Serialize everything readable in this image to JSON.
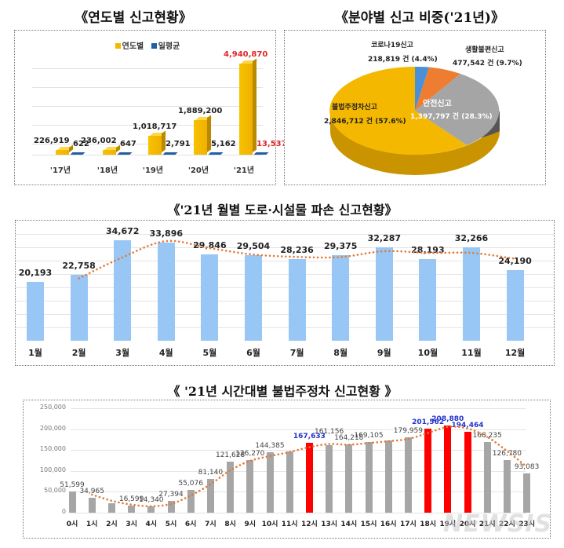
{
  "chart_data": [
    {
      "type": "bar",
      "title": "《연도별 신고현황》",
      "legend": [
        "연도별",
        "일평균"
      ],
      "legend_colors": [
        "#f5b800",
        "#1f5fa8"
      ],
      "categories": [
        "'17년",
        "'18년",
        "'19년",
        "'20년",
        "'21년"
      ],
      "series": [
        {
          "name": "연도별",
          "values": [
            226919,
            236002,
            1018717,
            1889200,
            4940870
          ],
          "labels": [
            "226,919",
            "236,002",
            "1,018,717",
            "1,889,200",
            "4,940,870"
          ]
        },
        {
          "name": "일평균",
          "values": [
            622,
            647,
            2791,
            5162,
            13537
          ],
          "labels": [
            "622",
            "647",
            "2,791",
            "5,162",
            "13,537"
          ]
        }
      ],
      "highlight_color": "#e0262b",
      "style": "3d-column",
      "grid": true
    },
    {
      "type": "pie",
      "title": "《분야별 신고 비중('21년)》",
      "slices": [
        {
          "name": "불법주정차신고",
          "value": 2846712,
          "label": "2,846,712 건 (57.6%)",
          "percent": 57.6,
          "color": "#f5b800"
        },
        {
          "name": "코로나19신고",
          "value": 218819,
          "label": "218,819 건 (4.4%)",
          "percent": 4.4,
          "color": "#4a90d9"
        },
        {
          "name": "생활불편신고",
          "value": 477542,
          "label": "477,542 건 (9.7%)",
          "percent": 9.7,
          "color": "#ed7d31"
        },
        {
          "name": "안전신고",
          "value": 1397797,
          "label": "1,397,797 건 (28.3%)",
          "percent": 28.3,
          "color": "#a5a5a5"
        }
      ],
      "style": "3d-pie"
    },
    {
      "type": "bar",
      "title": "《'21년 월별 도로·시설물 파손 신고현황》",
      "categories": [
        "1월",
        "2월",
        "3월",
        "4월",
        "5월",
        "6월",
        "7월",
        "8월",
        "9월",
        "10월",
        "11월",
        "12월"
      ],
      "values": [
        20193,
        22758,
        34672,
        33896,
        29846,
        29504,
        28236,
        29375,
        32287,
        28193,
        32266,
        24190
      ],
      "labels": [
        "20,193",
        "22,758",
        "34,672",
        "33,896",
        "29,846",
        "29,504",
        "28,236",
        "29,375",
        "32,287",
        "28,193",
        "32,266",
        "24,190"
      ],
      "bar_color": "#99c7f5",
      "trendline": {
        "style": "dotted",
        "color": "#e07b39",
        "type": "moving-average"
      },
      "ylim": [
        0,
        40000
      ],
      "grid": true
    },
    {
      "type": "bar",
      "title": "《 '21년 시간대별 불법주정차 신고현황 》",
      "categories": [
        "0시",
        "1시",
        "2시",
        "3시",
        "4시",
        "5시",
        "6시",
        "7시",
        "8시",
        "9시",
        "10시",
        "11시",
        "12시",
        "13시",
        "14시",
        "15시",
        "16시",
        "17시",
        "18시",
        "19시",
        "20시",
        "21시",
        "22시",
        "23시"
      ],
      "values": [
        51599,
        34965,
        22000,
        16599,
        14340,
        27394,
        55076,
        81140,
        121628,
        126270,
        144385,
        146000,
        167633,
        161156,
        164218,
        169105,
        173000,
        179959,
        201562,
        208880,
        194464,
        168235,
        126780,
        93083
      ],
      "labels": [
        "51,599",
        "34,965",
        "",
        "16,599",
        "14,340",
        "27,394",
        "55,076",
        "81,140",
        "121,628",
        "126,270",
        "144,385",
        "",
        "167,633",
        "161,156",
        "164,218",
        "169,105",
        "",
        "179,959",
        "201,562",
        "208,880",
        "194,464",
        "168,235",
        "126,780",
        "93,083"
      ],
      "highlighted": [
        12,
        18,
        19,
        20
      ],
      "bar_color": "#a6a6a6",
      "highlight_color": "#ff0000",
      "highlight_label_color": "#2233cc",
      "yticks": [
        "250,000",
        "200,000",
        "150,000",
        "100,000",
        "50,000",
        "0"
      ],
      "ylim": [
        0,
        250000
      ],
      "trendline": {
        "style": "dotted",
        "color": "#e07b39",
        "type": "moving-average"
      },
      "grid": true
    }
  ],
  "watermark": "NEWSIS"
}
